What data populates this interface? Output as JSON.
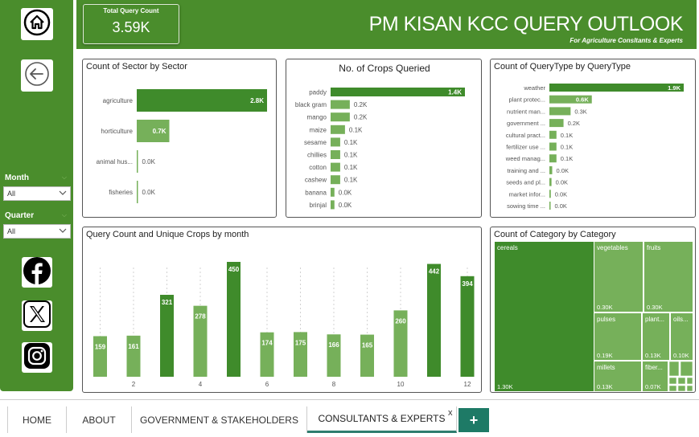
{
  "header": {
    "kpi_label": "Total Query Count",
    "kpi_value": "3.59K",
    "title": "PM KISAN KCC QUERY OUTLOOK",
    "subtitle": "For Agriculture Consltants & Experts"
  },
  "sidebar": {
    "home_icon": "home-icon",
    "back_icon": "back-arrow-icon",
    "filters": [
      {
        "label": "Month",
        "value": "All"
      },
      {
        "label": "Quarter",
        "value": "All"
      }
    ],
    "social_icons": [
      "facebook-icon",
      "x-icon",
      "instagram-icon"
    ]
  },
  "colors": {
    "primary": "#4a8d2c",
    "bar": "#3f8b2b",
    "bar_light": "#76b05a",
    "tab_accent": "#1e7a66"
  },
  "tabs": {
    "items": [
      {
        "label": "HOME"
      },
      {
        "label": "ABOUT"
      },
      {
        "label": "GOVERNMENT & STAKEHOLDERS"
      },
      {
        "label": "CONSULTANTS & EXPERTS"
      }
    ],
    "close": "x",
    "add": "+"
  },
  "chart_data": [
    {
      "type": "bar",
      "orientation": "horizontal",
      "title": "Count of Sector by Sector",
      "categories": [
        "agriculture",
        "horticulture",
        "animal hus...",
        "fisheries"
      ],
      "values": [
        2800,
        700,
        10,
        5
      ],
      "labels": [
        "2.8K",
        "0.7K",
        "0.0K",
        "0.0K"
      ]
    },
    {
      "type": "bar",
      "orientation": "horizontal",
      "title": "No. of Crops Queried",
      "categories": [
        "paddy",
        "black gram",
        "mango",
        "maize",
        "sesame",
        "chillies",
        "cotton",
        "cashew",
        "banana",
        "brinjal"
      ],
      "values": [
        1400,
        200,
        200,
        150,
        100,
        100,
        100,
        100,
        40,
        40
      ],
      "labels": [
        "1.4K",
        "0.2K",
        "0.2K",
        "0.1K",
        "0.1K",
        "0.1K",
        "0.1K",
        "0.1K",
        "0.0K",
        "0.0K"
      ]
    },
    {
      "type": "bar",
      "orientation": "horizontal",
      "title": "Count of QueryType by QueryType",
      "categories": [
        "weather",
        "plant protec...",
        "nutrient man...",
        "government ...",
        "cultural pract...",
        "fertilizer use ...",
        "weed manag...",
        "training and ...",
        "seeds and pl...",
        "market infor...",
        "sowing time ..."
      ],
      "values": [
        1900,
        600,
        300,
        200,
        100,
        100,
        100,
        40,
        30,
        20,
        10
      ],
      "labels": [
        "1.9K",
        "0.6K",
        "0.3K",
        "0.2K",
        "0.1K",
        "0.1K",
        "0.1K",
        "0.0K",
        "0.0K",
        "0.0K",
        "0.0K"
      ]
    },
    {
      "type": "bar",
      "title": "Query Count and Unique Crops by month",
      "categories": [
        1,
        2,
        3,
        4,
        5,
        6,
        7,
        8,
        9,
        10,
        11,
        12
      ],
      "tick_labels": [
        "2",
        "4",
        "6",
        "8",
        "10",
        "12"
      ],
      "values": [
        159,
        161,
        321,
        278,
        450,
        174,
        175,
        166,
        165,
        260,
        442,
        394
      ]
    },
    {
      "type": "treemap",
      "title": "Count of Category by Category",
      "items": [
        {
          "name": "cereals",
          "label": "1.30K",
          "value": 1300
        },
        {
          "name": "vegetables",
          "label": "0.30K",
          "value": 300
        },
        {
          "name": "fruits",
          "label": "0.30K",
          "value": 300
        },
        {
          "name": "pulses",
          "label": "0.19K",
          "value": 190
        },
        {
          "name": "plant...",
          "label": "0.13K",
          "value": 130
        },
        {
          "name": "oils...",
          "label": "0.10K",
          "value": 100
        },
        {
          "name": "millets",
          "label": "0.13K",
          "value": 130
        },
        {
          "name": "fiber...",
          "label": "0.07K",
          "value": 70
        }
      ]
    }
  ]
}
